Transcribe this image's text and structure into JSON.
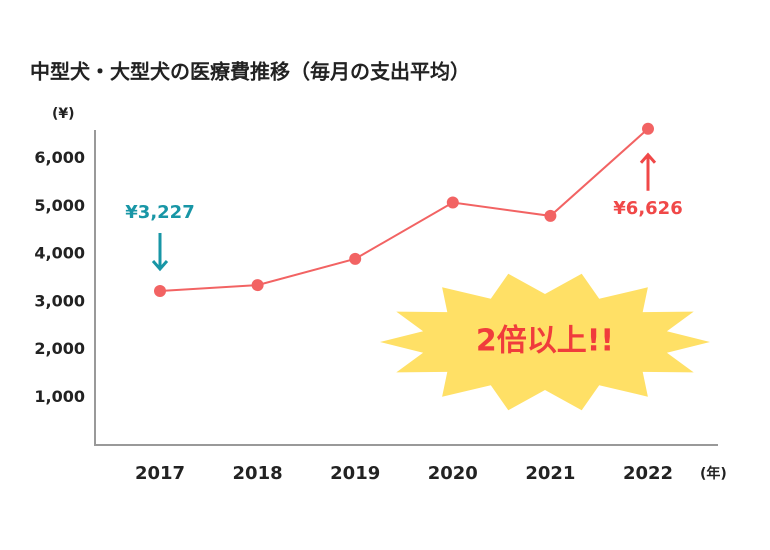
{
  "chart_data": {
    "type": "line",
    "title": "中型犬・大型犬の医療費推移（毎月の支出平均）",
    "y_label": "(¥)",
    "x_label": "(年)",
    "categories": [
      "2017",
      "2018",
      "2019",
      "2020",
      "2021",
      "2022"
    ],
    "series": [
      {
        "name": "医療費",
        "color": "#f26363",
        "values": [
          3227,
          3350,
          3900,
          5080,
          4800,
          6626
        ],
        "value_labels": [
          "¥3,227",
          null,
          null,
          null,
          null,
          "¥6,626"
        ],
        "label_colors": [
          "#1896a6",
          null,
          null,
          null,
          null,
          "#f04848"
        ]
      }
    ],
    "ylim": [
      0,
      6600
    ],
    "yticks": [
      {
        "value": 1000,
        "label": "1,000"
      },
      {
        "value": 2000,
        "label": "2,000"
      },
      {
        "value": 3000,
        "label": "3,000"
      },
      {
        "value": 4000,
        "label": "4,000"
      },
      {
        "value": 5000,
        "label": "5,000"
      },
      {
        "value": 6000,
        "label": "6,000"
      }
    ],
    "annotation": "2倍以上!!",
    "annotation_color": "#ffe066",
    "annotation_text_color": "#f03c3c"
  }
}
